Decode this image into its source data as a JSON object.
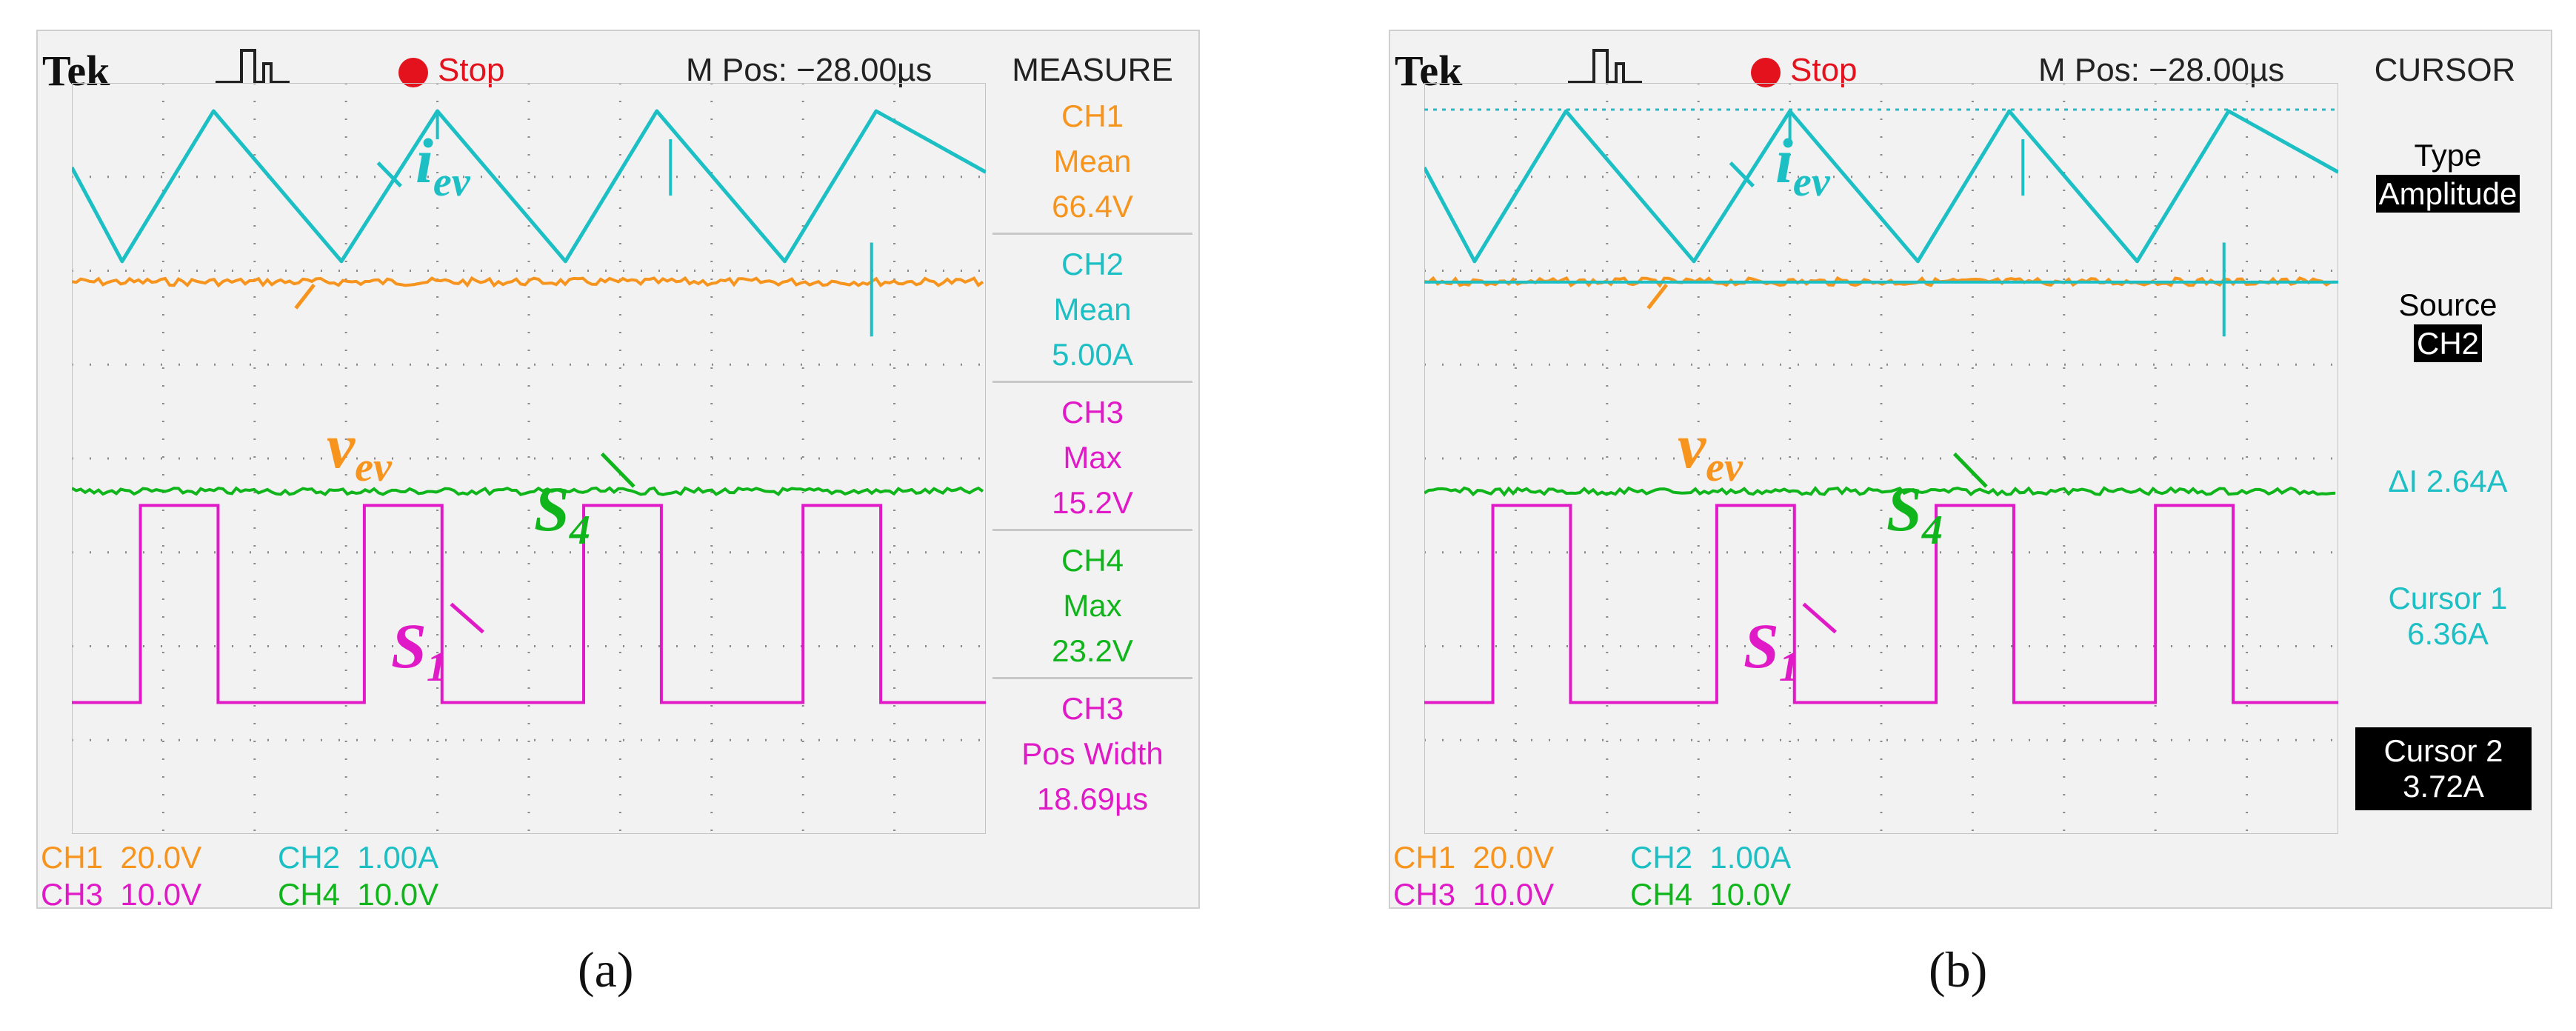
{
  "colors": {
    "ch1": "#f7941d",
    "ch2": "#1cbfc4",
    "ch3": "#e01ac7",
    "ch4": "#10b51c",
    "grid": "#8a8a8a",
    "stop": "#e3121c"
  },
  "chart_data": [
    {
      "type": "line",
      "panel_label": "(a)",
      "brand": "Tek",
      "trigger_state": "Stop",
      "position": "M Pos: −28.00µs",
      "menu": "MEASURE",
      "measurements": [
        {
          "channel": "CH1",
          "type": "Mean",
          "value": "66.4V"
        },
        {
          "channel": "CH2",
          "type": "Mean",
          "value": "5.00A"
        },
        {
          "channel": "CH3",
          "type": "Max",
          "value": "15.2V"
        },
        {
          "channel": "CH4",
          "type": "Max",
          "value": "23.2V"
        },
        {
          "channel": "CH3",
          "type": "Pos Width",
          "value": "18.69µs"
        }
      ],
      "channel_scales": [
        {
          "channel": "CH1",
          "scale": "20.0V"
        },
        {
          "channel": "CH2",
          "scale": "1.00A"
        },
        {
          "channel": "CH3",
          "scale": "10.0V"
        },
        {
          "channel": "CH4",
          "scale": "10.0V"
        }
      ],
      "labels": {
        "iev_main": "i",
        "iev_sub": "ev",
        "vev_main": "v",
        "vev_sub": "ev",
        "s4_main": "S",
        "s4_sub": "4",
        "s1_main": "S",
        "s1_sub": "1"
      },
      "series": [
        {
          "name": "i_ev (CH2)",
          "unit": "A",
          "waveform": "triangular",
          "peak_x_div": [
            1.55,
            4.0,
            6.4,
            8.8
          ],
          "valley_x_div": [
            0.55,
            2.95,
            5.4,
            7.8
          ],
          "peak_a": 6.36,
          "valley_a": 3.72,
          "mean_a": 5.0
        },
        {
          "name": "v_ev (CH1)",
          "unit": "V",
          "level_v": 66.4
        },
        {
          "name": "S4 (CH4)",
          "unit": "V",
          "level_v": 23.2
        },
        {
          "name": "S1 (CH3)",
          "unit": "V",
          "waveform": "square",
          "high_intervals_div": [
            [
              0.75,
              1.6
            ],
            [
              3.2,
              4.05
            ],
            [
              5.6,
              6.45
            ],
            [
              8.0,
              8.85
            ]
          ],
          "high_v": 15.2
        }
      ],
      "x_divisions": 10,
      "y_divisions": 8
    },
    {
      "type": "line",
      "panel_label": "(b)",
      "brand": "Tek",
      "trigger_state": "Stop",
      "position": "M Pos: −28.00µs",
      "menu": "CURSOR",
      "cursor_menu": {
        "type_label": "Type",
        "type_value": "Amplitude",
        "source_label": "Source",
        "source_value": "CH2",
        "delta": "ΔI 2.64A",
        "cursor1_label": "Cursor 1",
        "cursor1_value": "6.36A",
        "cursor2_label": "Cursor 2",
        "cursor2_value": "3.72A"
      },
      "channel_scales": [
        {
          "channel": "CH1",
          "scale": "20.0V"
        },
        {
          "channel": "CH2",
          "scale": "1.00A"
        },
        {
          "channel": "CH3",
          "scale": "10.0V"
        },
        {
          "channel": "CH4",
          "scale": "10.0V"
        }
      ],
      "labels": {
        "iev_main": "i",
        "iev_sub": "ev",
        "vev_main": "v",
        "vev_sub": "ev",
        "s4_main": "S",
        "s4_sub": "4",
        "s1_main": "S",
        "s1_sub": "1"
      }
    }
  ]
}
